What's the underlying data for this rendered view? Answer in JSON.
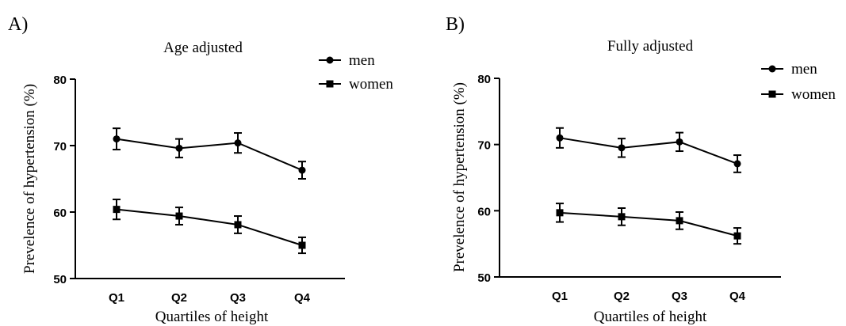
{
  "chart_data": [
    {
      "type": "line",
      "panel_label": "A)",
      "title": "Age adjusted",
      "xlabel": "Quartiles of height",
      "ylabel": "Prevelence of hypertension (%)",
      "categories": [
        "Q1",
        "Q2",
        "Q3",
        "Q4"
      ],
      "ylim": [
        50,
        80
      ],
      "yticks": [
        50,
        60,
        70,
        80
      ],
      "grid": false,
      "legend_position": "top-right",
      "series": [
        {
          "name": "men",
          "marker": "circle",
          "values": [
            71.0,
            69.6,
            70.4,
            66.3
          ],
          "err": [
            1.6,
            1.4,
            1.5,
            1.3
          ]
        },
        {
          "name": "women",
          "marker": "square",
          "values": [
            60.4,
            59.4,
            58.1,
            55.0
          ],
          "err": [
            1.5,
            1.3,
            1.3,
            1.2
          ]
        }
      ]
    },
    {
      "type": "line",
      "panel_label": "B)",
      "title": "Fully adjusted",
      "xlabel": "Quartiles of height",
      "ylabel": "Prevelence of hypertension (%)",
      "categories": [
        "Q1",
        "Q2",
        "Q3",
        "Q4"
      ],
      "ylim": [
        50,
        80
      ],
      "yticks": [
        50,
        60,
        70,
        80
      ],
      "grid": false,
      "legend_position": "top-right",
      "series": [
        {
          "name": "men",
          "marker": "circle",
          "values": [
            71.0,
            69.5,
            70.4,
            67.1
          ],
          "err": [
            1.5,
            1.4,
            1.4,
            1.3
          ]
        },
        {
          "name": "women",
          "marker": "square",
          "values": [
            59.7,
            59.1,
            58.5,
            56.2
          ],
          "err": [
            1.4,
            1.3,
            1.3,
            1.2
          ]
        }
      ]
    }
  ]
}
